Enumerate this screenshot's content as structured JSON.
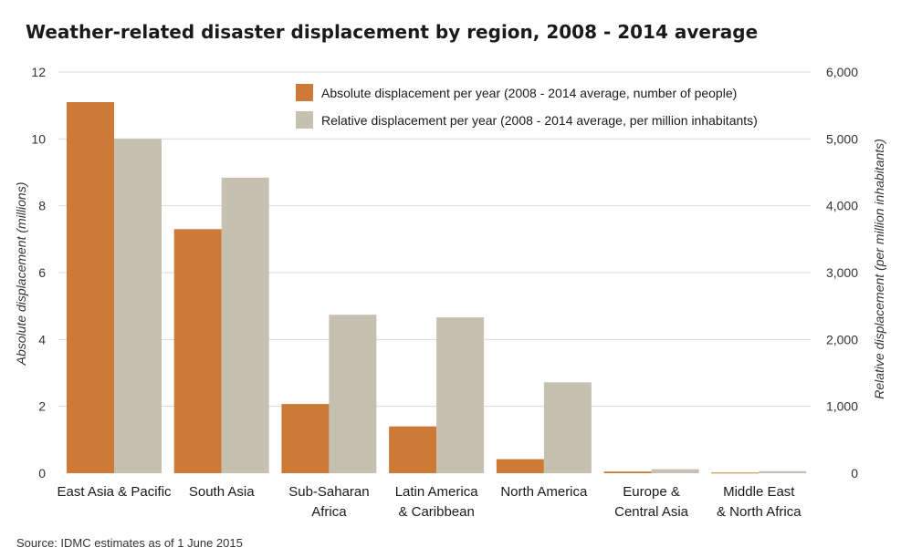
{
  "chart_data": {
    "type": "bar",
    "title": "Weather-related disaster displacement by region, 2008 - 2014 average",
    "categories": [
      [
        "East Asia & Pacific"
      ],
      [
        "South Asia"
      ],
      [
        "Sub-Saharan",
        "Africa"
      ],
      [
        "Latin America",
        "& Caribbean"
      ],
      [
        "North America"
      ],
      [
        "Europe &",
        "Central Asia"
      ],
      [
        "Middle East",
        "& North Africa"
      ]
    ],
    "series": [
      {
        "name": "Absolute displacement per year (2008 - 2014 average, number of people)",
        "axis": "left",
        "color": "#cd7a36",
        "values": [
          11.1,
          7.3,
          2.07,
          1.4,
          0.42,
          0.05,
          0.02
        ]
      },
      {
        "name": "Relative displacement per year (2008 - 2014 average, per million inhabitants)",
        "axis": "right",
        "color": "#c6c0b0",
        "values": [
          5000,
          4420,
          2370,
          2330,
          1360,
          60,
          30
        ]
      }
    ],
    "ylabel": "Absolute displacement (millions)",
    "ylim": [
      0,
      12
    ],
    "yticks": [
      "0",
      "2",
      "4",
      "6",
      "8",
      "10",
      "12"
    ],
    "y2label": "Relative displacement (per million inhabitants)",
    "y2lim": [
      0,
      6000
    ],
    "y2ticks": [
      "0",
      "1,000",
      "2,000",
      "3,000",
      "4,000",
      "5,000",
      "6,000"
    ],
    "grid": true,
    "legend": "top-right",
    "source": "Source: IDMC estimates as of 1 June 2015"
  }
}
